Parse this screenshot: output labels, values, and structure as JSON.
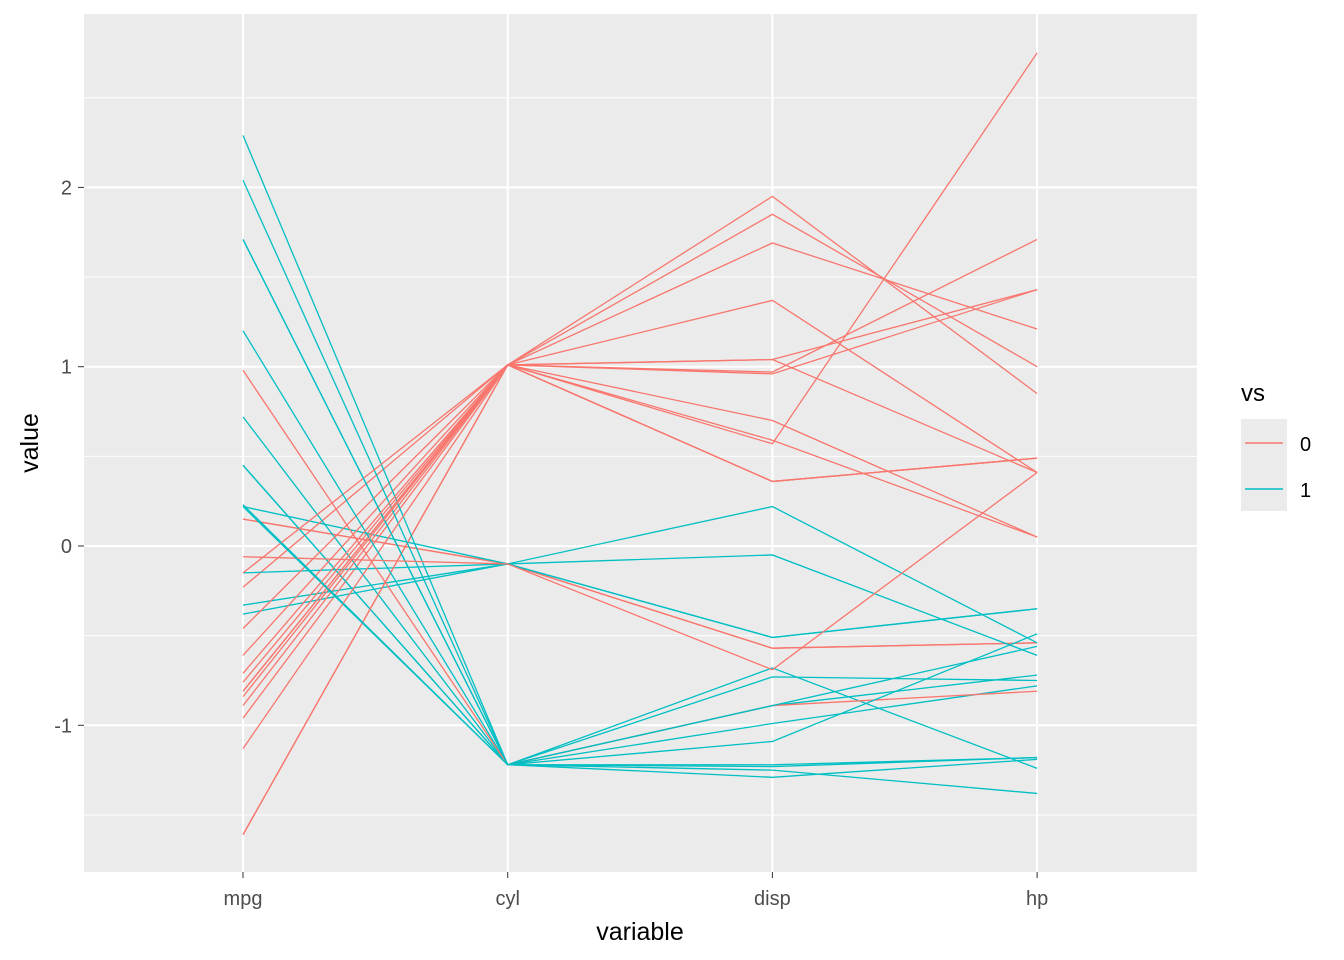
{
  "chart_data": {
    "type": "line",
    "subtype": "parallel-coordinates",
    "xlabel": "variable",
    "ylabel": "value",
    "categories": [
      "mpg",
      "cyl",
      "disp",
      "hp"
    ],
    "ylim": [
      -1.8,
      2.99
    ],
    "yticks": [
      -1,
      0,
      1,
      2
    ],
    "ytick_labels": [
      "-1",
      "0",
      "1",
      "2"
    ],
    "grid": true,
    "legend": {
      "title": "vs",
      "position": "right",
      "entries": [
        {
          "label": "0",
          "color": "#F8766D"
        },
        {
          "label": "1",
          "color": "#00BFC4"
        }
      ]
    },
    "series": [
      {
        "group": "0",
        "values": [
          0.15,
          -0.1,
          -0.57,
          -0.54
        ]
      },
      {
        "group": "0",
        "values": [
          0.15,
          -0.1,
          -0.57,
          -0.54
        ]
      },
      {
        "group": "1",
        "values": [
          0.45,
          -1.22,
          -0.99,
          -0.78
        ]
      },
      {
        "group": "1",
        "values": [
          0.22,
          -0.1,
          0.22,
          -0.54
        ]
      },
      {
        "group": "0",
        "values": [
          -0.23,
          1.01,
          1.04,
          0.41
        ]
      },
      {
        "group": "1",
        "values": [
          -0.33,
          -0.1,
          -0.05,
          -0.61
        ]
      },
      {
        "group": "0",
        "values": [
          -0.96,
          1.01,
          1.04,
          1.43
        ]
      },
      {
        "group": "1",
        "values": [
          0.72,
          -1.22,
          -0.68,
          -1.24
        ]
      },
      {
        "group": "1",
        "values": [
          0.45,
          -1.22,
          -0.73,
          -0.75
        ]
      },
      {
        "group": "1",
        "values": [
          -0.15,
          -0.1,
          -0.51,
          -0.35
        ]
      },
      {
        "group": "1",
        "values": [
          -0.38,
          -0.1,
          -0.51,
          -0.35
        ]
      },
      {
        "group": "0",
        "values": [
          -0.61,
          1.01,
          0.36,
          0.49
        ]
      },
      {
        "group": "0",
        "values": [
          -0.46,
          1.01,
          0.36,
          0.49
        ]
      },
      {
        "group": "0",
        "values": [
          -0.81,
          1.01,
          0.36,
          0.49
        ]
      },
      {
        "group": "0",
        "values": [
          -1.61,
          1.01,
          1.95,
          0.85
        ]
      },
      {
        "group": "0",
        "values": [
          -1.61,
          1.01,
          1.85,
          1.0
        ]
      },
      {
        "group": "0",
        "values": [
          -0.89,
          1.01,
          1.69,
          1.21
        ]
      },
      {
        "group": "1",
        "values": [
          2.04,
          -1.22,
          -1.23,
          -1.18
        ]
      },
      {
        "group": "1",
        "values": [
          1.71,
          -1.22,
          -1.25,
          -1.38
        ]
      },
      {
        "group": "1",
        "values": [
          2.29,
          -1.22,
          -1.29,
          -1.19
        ]
      },
      {
        "group": "1",
        "values": [
          0.23,
          -1.22,
          -0.89,
          -0.72
        ]
      },
      {
        "group": "0",
        "values": [
          -0.76,
          1.01,
          0.7,
          0.05
        ]
      },
      {
        "group": "0",
        "values": [
          -0.81,
          1.01,
          0.59,
          0.05
        ]
      },
      {
        "group": "0",
        "values": [
          -1.13,
          1.01,
          0.96,
          1.43
        ]
      },
      {
        "group": "0",
        "values": [
          -0.15,
          1.01,
          1.37,
          0.41
        ]
      },
      {
        "group": "1",
        "values": [
          1.2,
          -1.22,
          -1.22,
          -1.18
        ]
      },
      {
        "group": "0",
        "values": [
          0.98,
          -1.22,
          -0.89,
          -0.81
        ]
      },
      {
        "group": "1",
        "values": [
          1.71,
          -1.22,
          -1.09,
          -0.49
        ]
      },
      {
        "group": "0",
        "values": [
          -0.71,
          1.01,
          0.97,
          1.71
        ]
      },
      {
        "group": "0",
        "values": [
          -0.06,
          -0.1,
          -0.69,
          0.41
        ]
      },
      {
        "group": "0",
        "values": [
          -0.84,
          1.01,
          0.57,
          2.75
        ]
      },
      {
        "group": "1",
        "values": [
          0.22,
          -1.22,
          -0.89,
          -0.56
        ]
      }
    ]
  }
}
